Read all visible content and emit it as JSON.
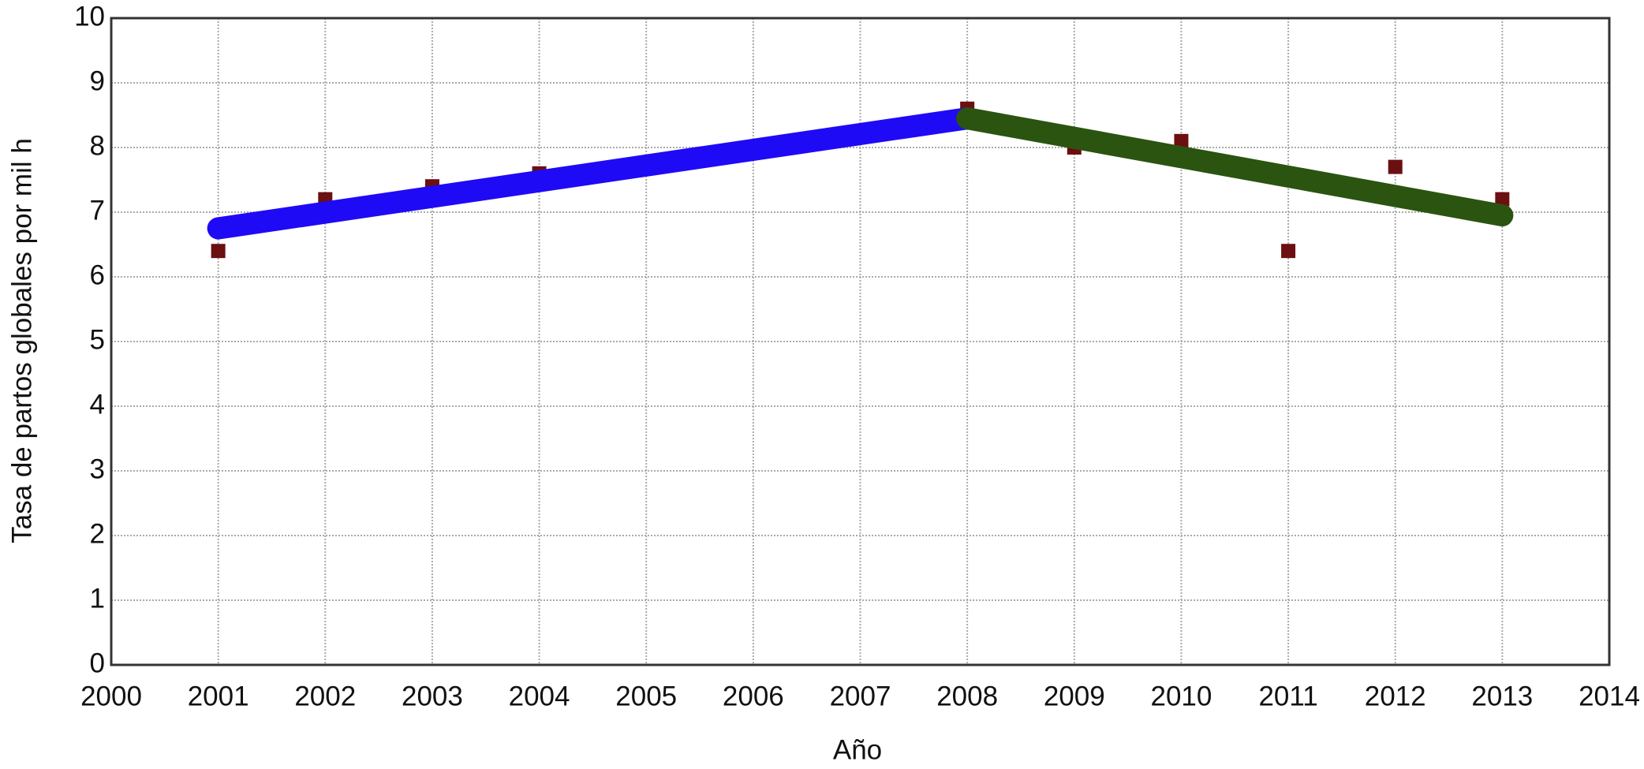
{
  "chart_data": {
    "type": "scatter",
    "x_label": "Año",
    "y_label": "Tasa de partos globales por mil h",
    "xlim": [
      2000,
      2014
    ],
    "xticks": [
      2000,
      2001,
      2002,
      2003,
      2004,
      2005,
      2006,
      2007,
      2008,
      2009,
      2010,
      2011,
      2012,
      2013,
      2014
    ],
    "ylim": [
      0,
      10
    ],
    "yticks": [
      0,
      1,
      2,
      3,
      4,
      5,
      6,
      7,
      8,
      9,
      10
    ],
    "grid": true,
    "series": [
      {
        "type": "scatter",
        "color": "#6b0f10",
        "x": [
          2001,
          2002,
          2003,
          2004,
          2008,
          2009,
          2010,
          2011,
          2012,
          2013
        ],
        "values": [
          6.4,
          7.2,
          7.4,
          7.6,
          8.6,
          8.0,
          8.1,
          6.4,
          7.7,
          7.2
        ]
      },
      {
        "type": "line",
        "color": "#1f0af5",
        "x": [
          2001,
          2008
        ],
        "values": [
          6.75,
          8.45
        ]
      },
      {
        "type": "line",
        "color": "#2b5410",
        "x": [
          2008,
          2013
        ],
        "values": [
          8.45,
          6.95
        ]
      }
    ]
  }
}
